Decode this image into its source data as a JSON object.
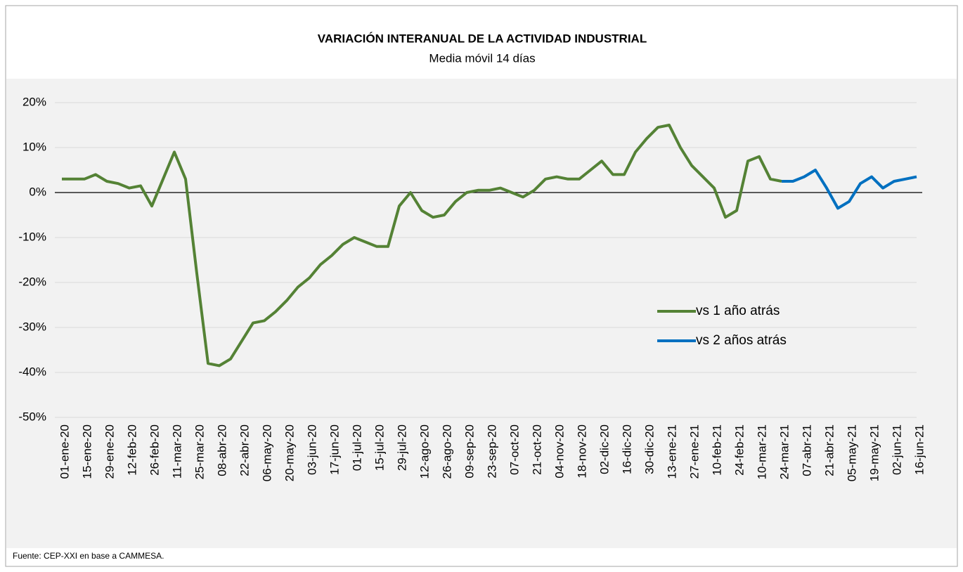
{
  "chart_data": {
    "type": "line",
    "title": "VARIACIÓN INTERANUAL DE LA ACTIVIDAD INDUSTRIAL",
    "subtitle": "Media móvil 14 días",
    "source": "Fuente: CEP-XXI en base a CAMMESA.",
    "categories": [
      "01-ene-20",
      null,
      "15-ene-20",
      null,
      "29-ene-20",
      null,
      "12-feb-20",
      null,
      "26-feb-20",
      null,
      "11-mar-20",
      null,
      "25-mar-20",
      null,
      "08-abr-20",
      null,
      "22-abr-20",
      null,
      "06-may-20",
      null,
      "20-may-20",
      null,
      "03-jun-20",
      null,
      "17-jun-20",
      null,
      "01-jul-20",
      null,
      "15-jul-20",
      null,
      "29-jul-20",
      null,
      "12-ago-20",
      null,
      "26-ago-20",
      null,
      "09-sep-20",
      null,
      "23-sep-20",
      null,
      "07-oct-20",
      null,
      "21-oct-20",
      null,
      "04-nov-20",
      null,
      "18-nov-20",
      null,
      "02-dic-20",
      null,
      "16-dic-20",
      null,
      "30-dic-20",
      null,
      "13-ene-21",
      null,
      "27-ene-21",
      null,
      "10-feb-21",
      null,
      "24-feb-21",
      null,
      "10-mar-21",
      null,
      "24-mar-21",
      null,
      "07-abr-21",
      null,
      "21-abr-21",
      null,
      "05-may-21",
      null,
      "19-may-21",
      null,
      "02-jun-21",
      null,
      "16-jun-21"
    ],
    "series": [
      {
        "name": "vs 1 año atrás",
        "color": "#548235",
        "values": [
          3,
          3,
          3,
          4,
          2.5,
          2,
          1,
          1.5,
          -3,
          3,
          9,
          3,
          -18,
          -38,
          -38.5,
          -37,
          -33,
          -29,
          -28.5,
          -26.5,
          -24,
          -21,
          -19,
          -16,
          -14,
          -11.5,
          -10,
          -11,
          -12,
          -12,
          -3,
          0,
          -4,
          -5.5,
          -5,
          -2,
          0,
          0.5,
          0.5,
          1,
          0,
          -1,
          0.5,
          3,
          3.5,
          3,
          3,
          5,
          7,
          4,
          4,
          9,
          12,
          14.5,
          15,
          10,
          6,
          3.5,
          1,
          -5.5,
          -4,
          7,
          8,
          3,
          2.5,
          null,
          null,
          null,
          null,
          null,
          null,
          null,
          null,
          null,
          null,
          null,
          null
        ]
      },
      {
        "name": "vs 2 años atrás",
        "color": "#0070c0",
        "values": [
          null,
          null,
          null,
          null,
          null,
          null,
          null,
          null,
          null,
          null,
          null,
          null,
          null,
          null,
          null,
          null,
          null,
          null,
          null,
          null,
          null,
          null,
          null,
          null,
          null,
          null,
          null,
          null,
          null,
          null,
          null,
          null,
          null,
          null,
          null,
          null,
          null,
          null,
          null,
          null,
          null,
          null,
          null,
          null,
          null,
          null,
          null,
          null,
          null,
          null,
          null,
          null,
          null,
          null,
          null,
          null,
          null,
          null,
          null,
          null,
          null,
          null,
          null,
          null,
          2.5,
          2.5,
          3.5,
          5,
          1,
          -3.5,
          -2,
          2,
          3.5,
          1,
          2.5,
          3,
          3.5
        ]
      }
    ],
    "ylim": [
      -50,
      20
    ],
    "yticks": [
      {
        "value": -50,
        "label": "-50%"
      },
      {
        "value": -40,
        "label": "-40%"
      },
      {
        "value": -30,
        "label": "-30%"
      },
      {
        "value": -20,
        "label": "-20%"
      },
      {
        "value": -10,
        "label": "-10%"
      },
      {
        "value": 0,
        "label": "0%"
      },
      {
        "value": 10,
        "label": "10%"
      },
      {
        "value": 20,
        "label": "20%"
      }
    ],
    "grid": true
  }
}
